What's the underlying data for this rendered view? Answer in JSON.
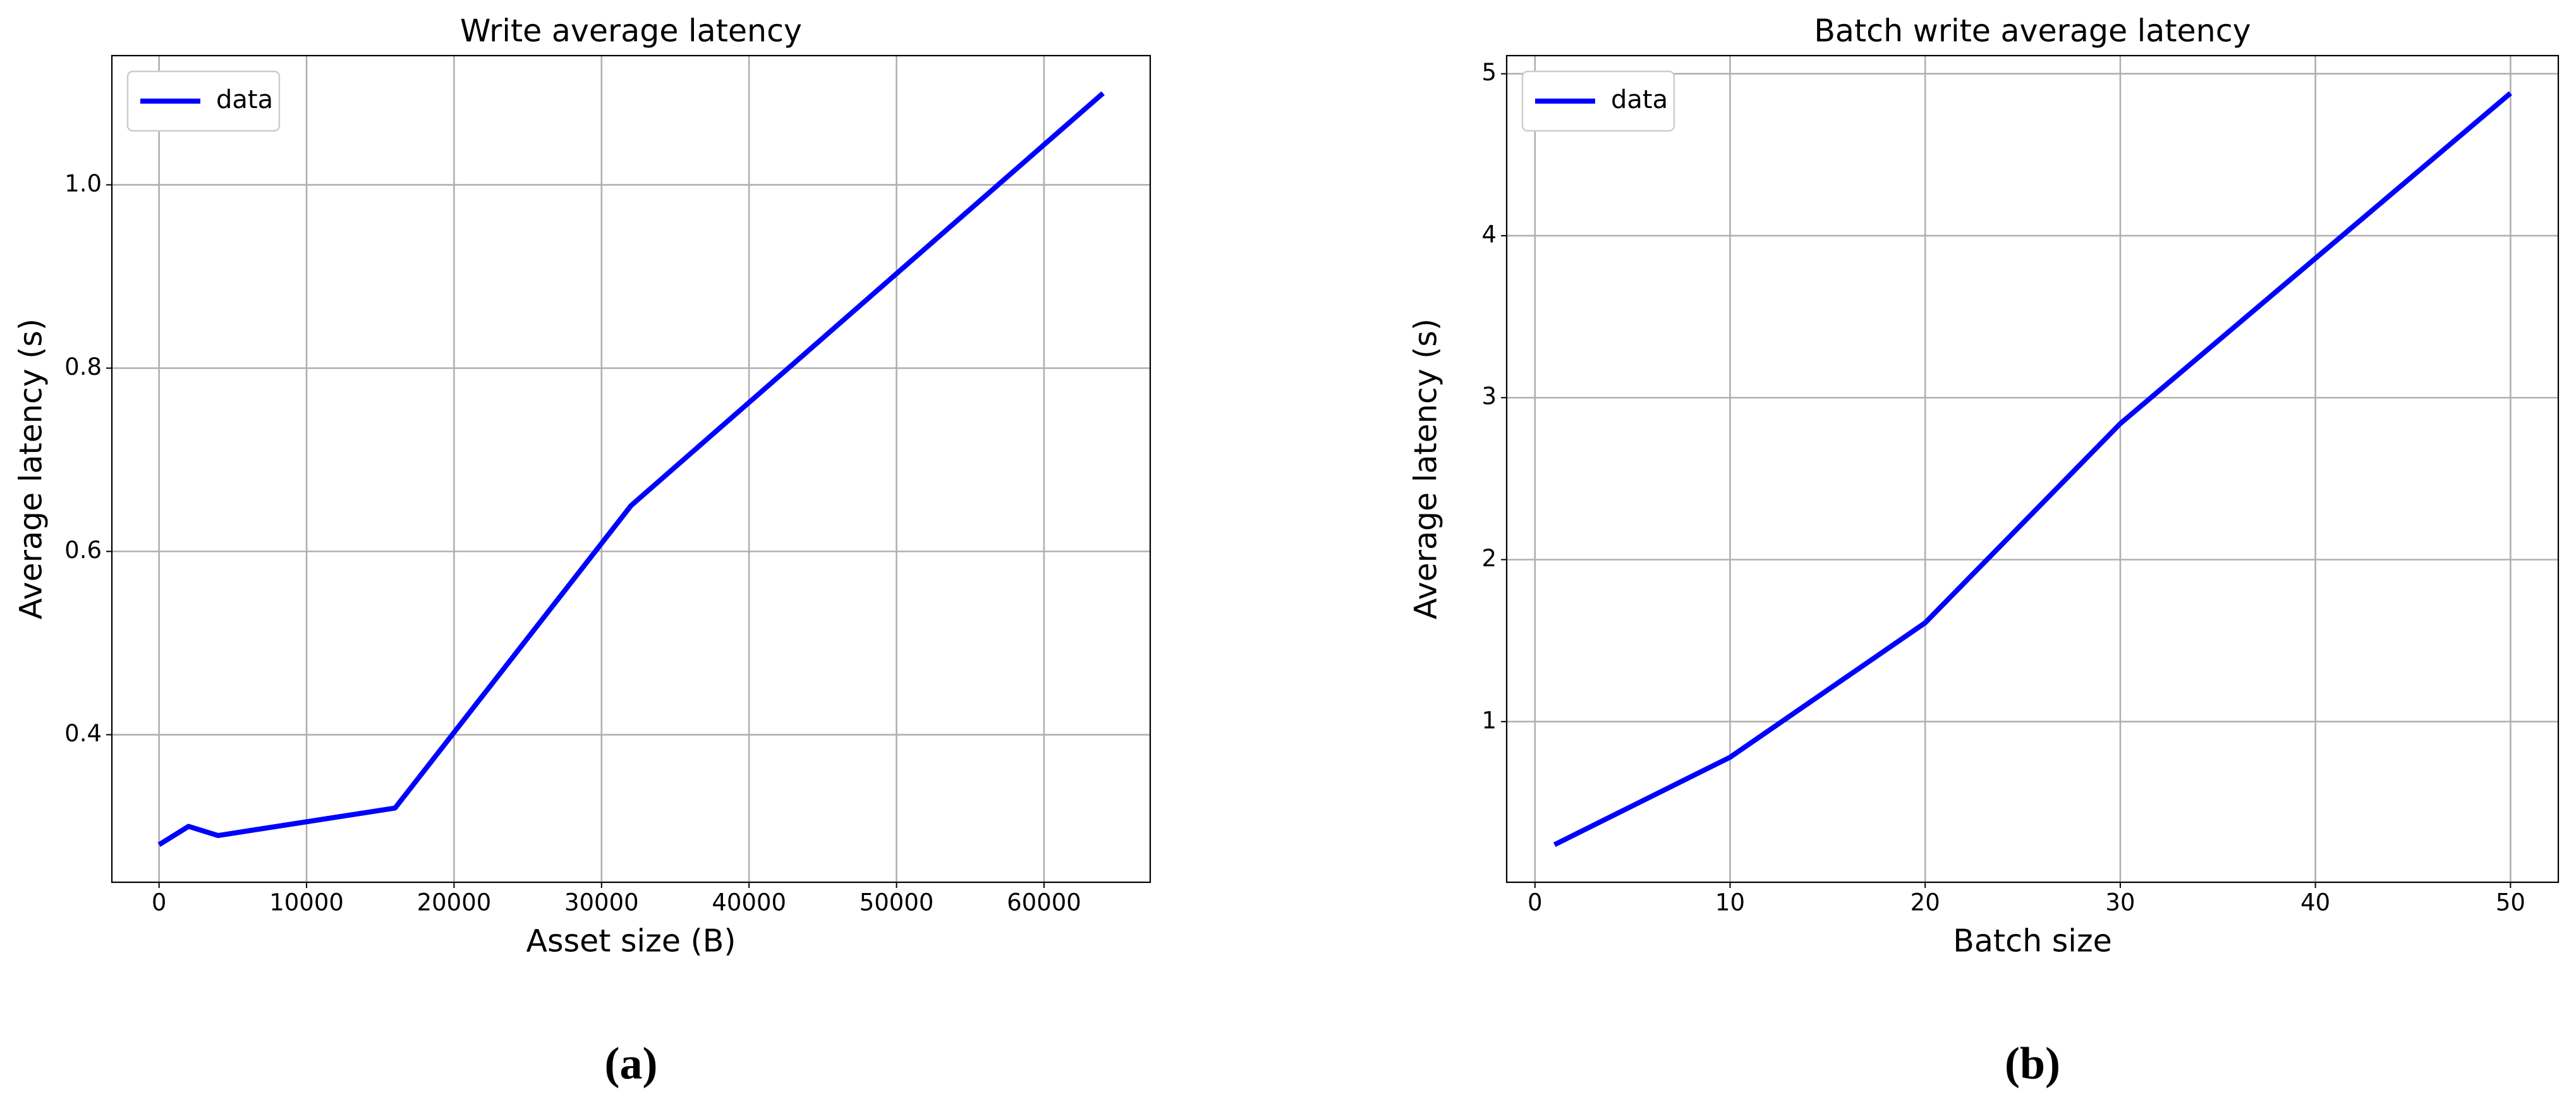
{
  "chart_data": [
    {
      "type": "line",
      "title": "Write average latency",
      "xlabel": "Asset size (B)",
      "ylabel": "Average latency (s)",
      "caption": "(a)",
      "x": [
        0,
        2000,
        4000,
        16000,
        32000,
        64000
      ],
      "series": [
        {
          "name": "data",
          "color": "#0000ff",
          "values": [
            0.28,
            0.3,
            0.29,
            0.32,
            0.65,
            1.1
          ]
        }
      ],
      "xlim": [
        -3200,
        67200
      ],
      "ylim": [
        0.239,
        1.141
      ],
      "xticks": [
        0,
        10000,
        20000,
        30000,
        40000,
        50000,
        60000
      ],
      "yticks": [
        0.4,
        0.6,
        0.8,
        {
          "value": 1,
          "label": "1.0"
        }
      ],
      "grid": true,
      "legend": "upper left"
    },
    {
      "type": "line",
      "title": "Batch write average latency",
      "xlabel": "Batch size",
      "ylabel": "Average latency (s)",
      "caption": "(b)",
      "x": [
        1,
        10,
        20,
        30,
        50
      ],
      "series": [
        {
          "name": "data",
          "color": "#0000ff",
          "values": [
            0.24,
            0.78,
            1.61,
            2.84,
            4.88
          ]
        }
      ],
      "xlim": [
        -1.45,
        52.45
      ],
      "ylim": [
        0.008,
        5.112
      ],
      "xticks": [
        0,
        10,
        20,
        30,
        40,
        50
      ],
      "yticks": [
        1,
        2,
        3,
        4,
        5
      ],
      "grid": true,
      "legend": "upper left"
    }
  ]
}
